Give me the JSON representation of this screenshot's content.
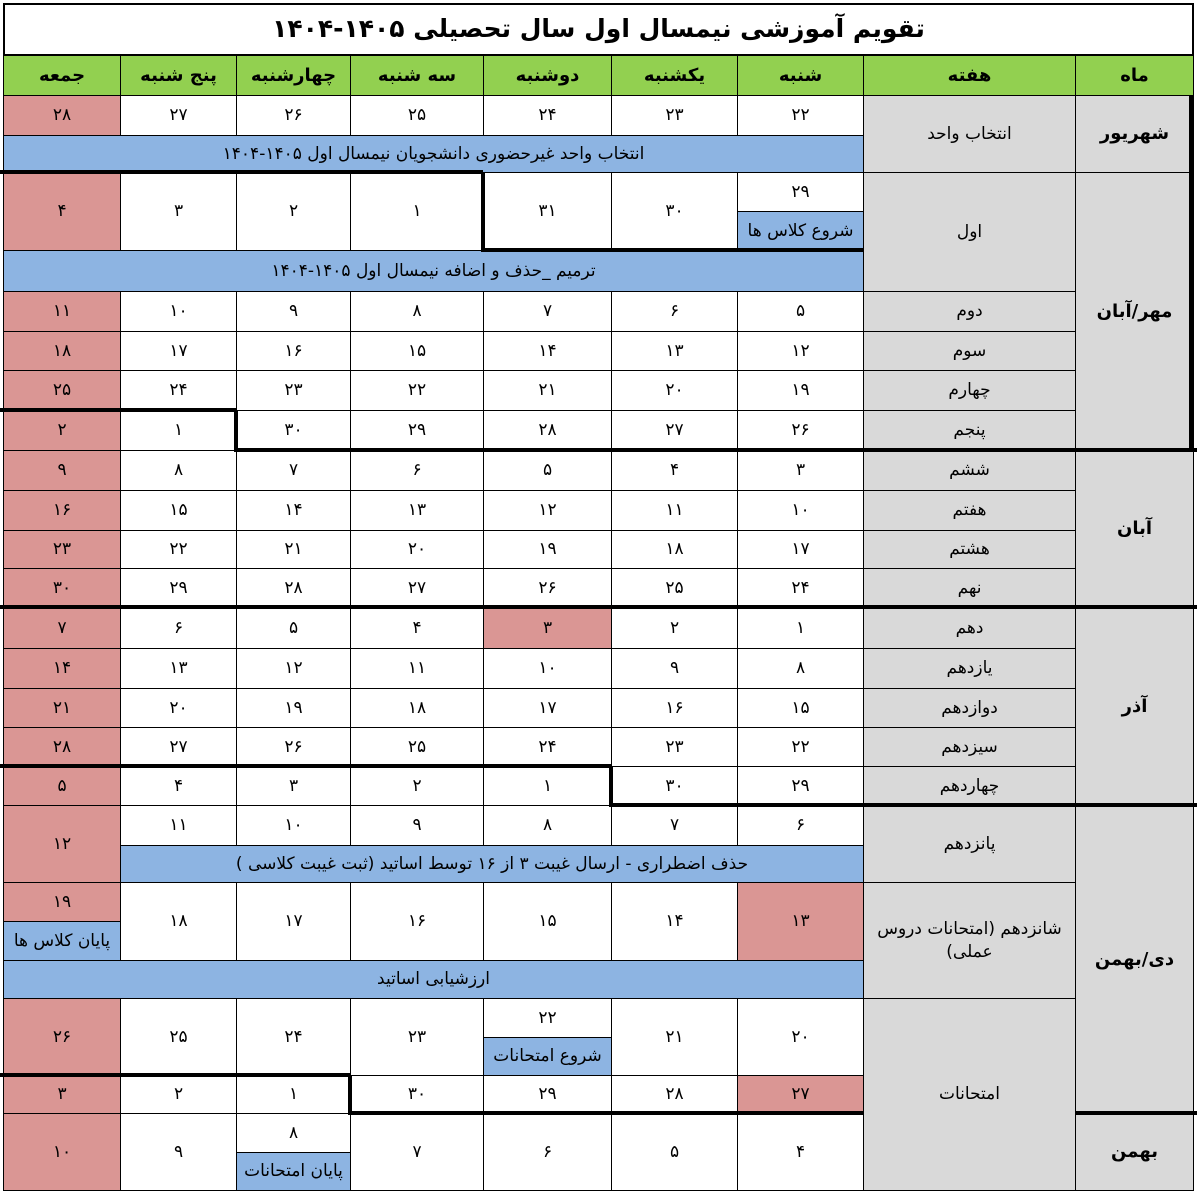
{
  "title": "تقویم آموزشی نیمسال اول سال تحصیلی ۱۴۰۵-۱۴۰۴",
  "headers": [
    "ماه",
    "هفته",
    "شنبه",
    "یکشنبه",
    "دوشنبه",
    "سه شنبه",
    "چهارشنبه",
    "پنج شنبه",
    "جمعه"
  ],
  "colors": {
    "header": "#92d050",
    "label_column": "#d9d9d9",
    "holiday": "#da9694",
    "event": "#8db4e2"
  },
  "months": [
    "شهریور",
    "مهر/آبان",
    "آبان",
    "آذر",
    "دی/بهمن",
    "بهمن"
  ],
  "weeks": [
    "انتخاب واحد",
    "اول",
    "دوم",
    "سوم",
    "چهارم",
    "پنجم",
    "ششم",
    "هفتم",
    "هشتم",
    "نهم",
    "دهم",
    "یازدهم",
    "دوازدهم",
    "سیزدهم",
    "چهاردهم",
    "پانزدهم",
    "شانزدهم (امتحانات دروس عملی)",
    "امتحانات"
  ],
  "day_rows": [
    {
      "days": [
        "۲۲",
        "۲۳",
        "۲۴",
        "۲۵",
        "۲۶",
        "۲۷",
        "۲۸"
      ],
      "holidays": [
        6
      ]
    },
    {
      "days": [
        "۲۹",
        "۳۰",
        "۳۱",
        "۱",
        "۲",
        "۳",
        "۴"
      ],
      "holidays": [
        6
      ]
    },
    {
      "days": [
        "۵",
        "۶",
        "۷",
        "۸",
        "۹",
        "۱۰",
        "۱۱"
      ],
      "holidays": [
        6
      ]
    },
    {
      "days": [
        "۱۲",
        "۱۳",
        "۱۴",
        "۱۵",
        "۱۶",
        "۱۷",
        "۱۸"
      ],
      "holidays": [
        6
      ]
    },
    {
      "days": [
        "۱۹",
        "۲۰",
        "۲۱",
        "۲۲",
        "۲۳",
        "۲۴",
        "۲۵"
      ],
      "holidays": [
        6
      ]
    },
    {
      "days": [
        "۲۶",
        "۲۷",
        "۲۸",
        "۲۹",
        "۳۰",
        "۱",
        "۲"
      ],
      "holidays": [
        6
      ]
    },
    {
      "days": [
        "۳",
        "۴",
        "۵",
        "۶",
        "۷",
        "۸",
        "۹"
      ],
      "holidays": [
        6
      ]
    },
    {
      "days": [
        "۱۰",
        "۱۱",
        "۱۲",
        "۱۳",
        "۱۴",
        "۱۵",
        "۱۶"
      ],
      "holidays": [
        6
      ]
    },
    {
      "days": [
        "۱۷",
        "۱۸",
        "۱۹",
        "۲۰",
        "۲۱",
        "۲۲",
        "۲۳"
      ],
      "holidays": [
        6
      ]
    },
    {
      "days": [
        "۲۴",
        "۲۵",
        "۲۶",
        "۲۷",
        "۲۸",
        "۲۹",
        "۳۰"
      ],
      "holidays": [
        6
      ]
    },
    {
      "days": [
        "۱",
        "۲",
        "۳",
        "۴",
        "۵",
        "۶",
        "۷"
      ],
      "holidays": [
        2,
        6
      ]
    },
    {
      "days": [
        "۸",
        "۹",
        "۱۰",
        "۱۱",
        "۱۲",
        "۱۳",
        "۱۴"
      ],
      "holidays": [
        6
      ]
    },
    {
      "days": [
        "۱۵",
        "۱۶",
        "۱۷",
        "۱۸",
        "۱۹",
        "۲۰",
        "۲۱"
      ],
      "holidays": [
        6
      ]
    },
    {
      "days": [
        "۲۲",
        "۲۳",
        "۲۴",
        "۲۵",
        "۲۶",
        "۲۷",
        "۲۸"
      ],
      "holidays": [
        6
      ]
    },
    {
      "days": [
        "۲۹",
        "۳۰",
        "۱",
        "۲",
        "۳",
        "۴",
        "۵"
      ],
      "holidays": [
        6
      ]
    },
    {
      "days": [
        "۶",
        "۷",
        "۸",
        "۹",
        "۱۰",
        "۱۱",
        "۱۲"
      ],
      "holidays": [
        6
      ]
    },
    {
      "days": [
        "۱۳",
        "۱۴",
        "۱۵",
        "۱۶",
        "۱۷",
        "۱۸",
        "۱۹"
      ],
      "holidays": [
        0,
        6
      ]
    },
    {
      "days": [
        "۲۰",
        "۲۱",
        "۲۲",
        "۲۳",
        "۲۴",
        "۲۵",
        "۲۶"
      ],
      "holidays": [
        6
      ]
    },
    {
      "days": [
        "۲۷",
        "۲۸",
        "۲۹",
        "۳۰",
        "۱",
        "۲",
        "۳"
      ],
      "holidays": [
        0,
        6
      ]
    },
    {
      "days": [
        "۴",
        "۵",
        "۶",
        "۷",
        "۸",
        "۹",
        "۱۰"
      ],
      "holidays": [
        6
      ]
    }
  ],
  "banners": [
    "انتخاب واحد غیرحضوری دانشجویان نیمسال اول ۱۴۰۵-۱۴۰۴",
    "ترمیم _حذف و اضافه نیمسال اول ۱۴۰۵-۱۴۰۴",
    "حذف اضطراری - ارسال غیبت ۳ از ۱۶ توسط اساتید (ثبت غیبت کلاسی )",
    "ارزشیابی اساتید"
  ],
  "cell_notes": [
    "شروع کلاس ها",
    "پایان کلاس ها",
    "شروع امتحانات",
    "پایان امتحانات"
  ]
}
